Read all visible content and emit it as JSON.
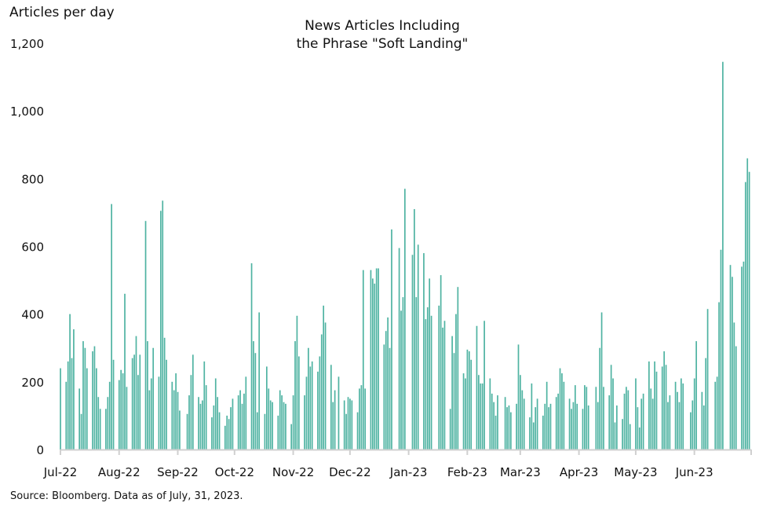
{
  "chart_data": {
    "type": "bar",
    "title_lines": [
      "News Articles Including",
      "the Phrase \"Soft Landing\""
    ],
    "ylabel": "Articles per day",
    "xlabel": "",
    "ylim": [
      0,
      1200
    ],
    "xlim": [
      "2022-07-01",
      "2023-06-30"
    ],
    "grid": false,
    "y_ticks": [
      "0",
      "200",
      "400",
      "600",
      "800",
      "1,000",
      "1,200"
    ],
    "y_tick_values": [
      0,
      200,
      400,
      600,
      800,
      1000,
      1200
    ],
    "x_ticks": [
      "Jul-22",
      "Aug-22",
      "Sep-22",
      "Oct-22",
      "Nov-22",
      "Dec-22",
      "Jan-23",
      "Feb-23",
      "Mar-23",
      "Apr-23",
      "May-23",
      "Jun-23"
    ],
    "x_tick_dates": [
      "2022-07-01",
      "2022-08-01",
      "2022-09-01",
      "2022-10-01",
      "2022-11-01",
      "2022-12-01",
      "2023-01-01",
      "2023-02-01",
      "2023-03-01",
      "2023-04-01",
      "2023-05-01",
      "2023-06-01"
    ],
    "bar_color": "#4fb3a2",
    "weeks": [
      {
        "week_of": "2022-06-27",
        "values": [
          null,
          null,
          null,
          null,
          240
        ]
      },
      {
        "week_of": "2022-07-04",
        "values": [
          200,
          260,
          400,
          270,
          355
        ]
      },
      {
        "week_of": "2022-07-11",
        "values": [
          180,
          105,
          320,
          300,
          240
        ]
      },
      {
        "week_of": "2022-07-18",
        "values": [
          290,
          305,
          240,
          155,
          120
        ]
      },
      {
        "week_of": "2022-07-25",
        "values": [
          120,
          155,
          200,
          725,
          265
        ]
      },
      {
        "week_of": "2022-08-01",
        "values": [
          205,
          235,
          225,
          460,
          185
        ]
      },
      {
        "week_of": "2022-08-08",
        "values": [
          270,
          280,
          335,
          220,
          280
        ]
      },
      {
        "week_of": "2022-08-15",
        "values": [
          675,
          320,
          175,
          210,
          300
        ]
      },
      {
        "week_of": "2022-08-22",
        "values": [
          215,
          705,
          735,
          330,
          265
        ]
      },
      {
        "week_of": "2022-08-29",
        "values": [
          200,
          175,
          225,
          170,
          115
        ]
      },
      {
        "week_of": "2022-09-05",
        "values": [
          null,
          105,
          160,
          220,
          280
        ]
      },
      {
        "week_of": "2022-09-12",
        "values": [
          155,
          135,
          145,
          260,
          190
        ]
      },
      {
        "week_of": "2022-09-19",
        "values": [
          95,
          130,
          210,
          155,
          110
        ]
      },
      {
        "week_of": "2022-09-26",
        "values": [
          70,
          100,
          90,
          125,
          150
        ]
      },
      {
        "week_of": "2022-10-03",
        "values": [
          160,
          175,
          135,
          165,
          215
        ]
      },
      {
        "week_of": "2022-10-10",
        "values": [
          550,
          320,
          285,
          110,
          405
        ]
      },
      {
        "week_of": "2022-10-17",
        "values": [
          105,
          245,
          180,
          145,
          140
        ]
      },
      {
        "week_of": "2022-10-24",
        "values": [
          100,
          175,
          160,
          140,
          135
        ]
      },
      {
        "week_of": "2022-10-31",
        "values": [
          75,
          160,
          320,
          395,
          275
        ]
      },
      {
        "week_of": "2022-11-07",
        "values": [
          160,
          215,
          300,
          245,
          260
        ]
      },
      {
        "week_of": "2022-11-14",
        "values": [
          230,
          275,
          340,
          425,
          375
        ]
      },
      {
        "week_of": "2022-11-21",
        "values": [
          250,
          140,
          175,
          null,
          215
        ]
      },
      {
        "week_of": "2022-11-28",
        "values": [
          145,
          105,
          155,
          150,
          145
        ]
      },
      {
        "week_of": "2022-12-05",
        "values": [
          110,
          180,
          190,
          530,
          180
        ]
      },
      {
        "week_of": "2022-12-12",
        "values": [
          530,
          505,
          490,
          535,
          535
        ]
      },
      {
        "week_of": "2022-12-19",
        "values": [
          310,
          350,
          390,
          300,
          650
        ]
      },
      {
        "week_of": "2022-12-26",
        "values": [
          null,
          595,
          410,
          450,
          770
        ]
      },
      {
        "week_of": "2023-01-02",
        "values": [
          null,
          575,
          710,
          450,
          605
        ]
      },
      {
        "week_of": "2023-01-09",
        "values": [
          580,
          385,
          420,
          505,
          395
        ]
      },
      {
        "week_of": "2023-01-16",
        "values": [
          null,
          425,
          515,
          360,
          380
        ]
      },
      {
        "week_of": "2023-01-23",
        "values": [
          120,
          335,
          285,
          400,
          480
        ]
      },
      {
        "week_of": "2023-01-30",
        "values": [
          225,
          210,
          295,
          290,
          265
        ]
      },
      {
        "week_of": "2023-02-06",
        "values": [
          365,
          220,
          195,
          195,
          380
        ]
      },
      {
        "week_of": "2023-02-13",
        "values": [
          210,
          165,
          140,
          100,
          160
        ]
      },
      {
        "week_of": "2023-02-20",
        "values": [
          null,
          155,
          125,
          130,
          110
        ]
      },
      {
        "week_of": "2023-02-27",
        "values": [
          135,
          310,
          220,
          175,
          150
        ]
      },
      {
        "week_of": "2023-03-06",
        "values": [
          95,
          195,
          80,
          125,
          150
        ]
      },
      {
        "week_of": "2023-03-13",
        "values": [
          100,
          135,
          200,
          125,
          135
        ]
      },
      {
        "week_of": "2023-03-20",
        "values": [
          155,
          165,
          240,
          225,
          200
        ]
      },
      {
        "week_of": "2023-03-27",
        "values": [
          150,
          120,
          140,
          190,
          135
        ]
      },
      {
        "week_of": "2023-04-03",
        "values": [
          120,
          190,
          185,
          130,
          null
        ]
      },
      {
        "week_of": "2023-04-10",
        "values": [
          185,
          140,
          300,
          405,
          185
        ]
      },
      {
        "week_of": "2023-04-17",
        "values": [
          160,
          250,
          210,
          80,
          130
        ]
      },
      {
        "week_of": "2023-04-24",
        "values": [
          90,
          165,
          185,
          175,
          75
        ]
      },
      {
        "week_of": "2023-05-01",
        "values": [
          210,
          125,
          65,
          150,
          165
        ]
      },
      {
        "week_of": "2023-05-08",
        "values": [
          260,
          180,
          150,
          260,
          230
        ]
      },
      {
        "week_of": "2023-05-15",
        "values": [
          245,
          290,
          250,
          140,
          160
        ]
      },
      {
        "week_of": "2023-05-22",
        "values": [
          200,
          170,
          140,
          210,
          195
        ]
      },
      {
        "week_of": "2023-05-29",
        "values": [
          null,
          110,
          145,
          210,
          320
        ]
      },
      {
        "week_of": "2023-06-05",
        "values": [
          170,
          130,
          270,
          415,
          null
        ]
      },
      {
        "week_of": "2023-06-12",
        "values": [
          200,
          215,
          435,
          590,
          1145
        ]
      },
      {
        "week_of": "2023-06-19",
        "values": [
          null,
          545,
          510,
          375,
          305
        ]
      },
      {
        "week_of": "2023-06-26",
        "values": [
          540,
          555,
          790,
          860,
          820
        ]
      }
    ]
  },
  "source": "Source: Bloomberg. Data as of July, 31, 2023."
}
